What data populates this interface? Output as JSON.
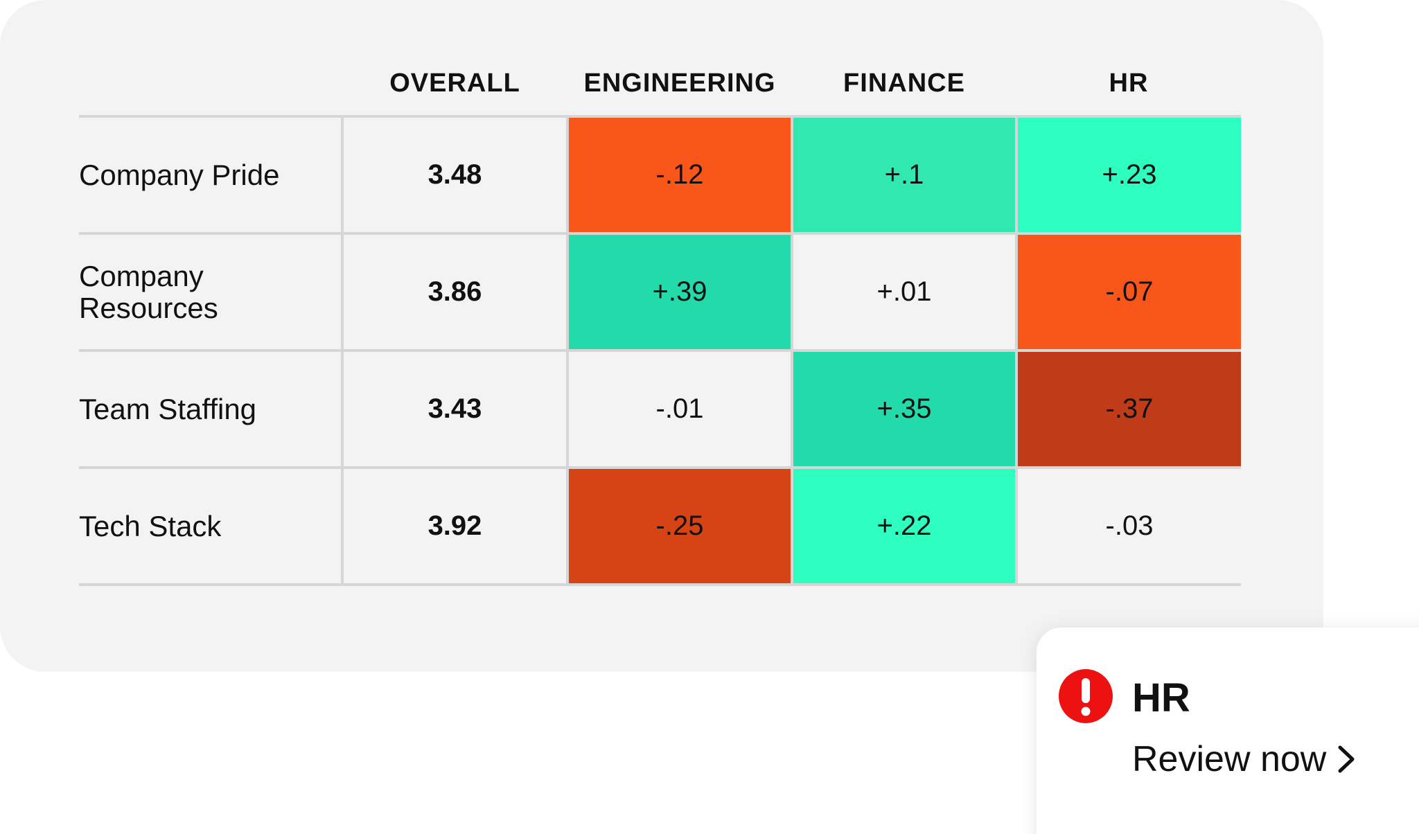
{
  "table": {
    "headers": [
      "",
      "OVERALL",
      "ENGINEERING",
      "FINANCE",
      "HR"
    ],
    "rows": [
      {
        "label": "Company Pride",
        "overall": "3.48",
        "cells": [
          {
            "text": "-.12",
            "color": "#f9561a"
          },
          {
            "text": "+.1",
            "color": "#31e9b0"
          },
          {
            "text": "+.23",
            "color": "#2effc1"
          }
        ]
      },
      {
        "label": "Company Resources",
        "overall": "3.86",
        "cells": [
          {
            "text": "+.39",
            "color": "#23dbaa"
          },
          {
            "text": "+.01",
            "color": ""
          },
          {
            "text": "-.07",
            "color": "#f9561a"
          }
        ]
      },
      {
        "label": "Team Staffing",
        "overall": "3.43",
        "cells": [
          {
            "text": "-.01",
            "color": ""
          },
          {
            "text": "+.35",
            "color": "#23dbaa"
          },
          {
            "text": "-.37",
            "color": "#c03b18"
          }
        ]
      },
      {
        "label": "Tech Stack",
        "overall": "3.92",
        "cells": [
          {
            "text": "-.25",
            "color": "#d64314"
          },
          {
            "text": "+.22",
            "color": "#2effc1"
          },
          {
            "text": "-.03",
            "color": ""
          }
        ]
      }
    ]
  },
  "alert": {
    "icon": "exclamation-circle-icon",
    "icon_color": "#ee1111",
    "title": "HR",
    "link_label": "Review now",
    "link_icon": "chevron-right-icon"
  }
}
